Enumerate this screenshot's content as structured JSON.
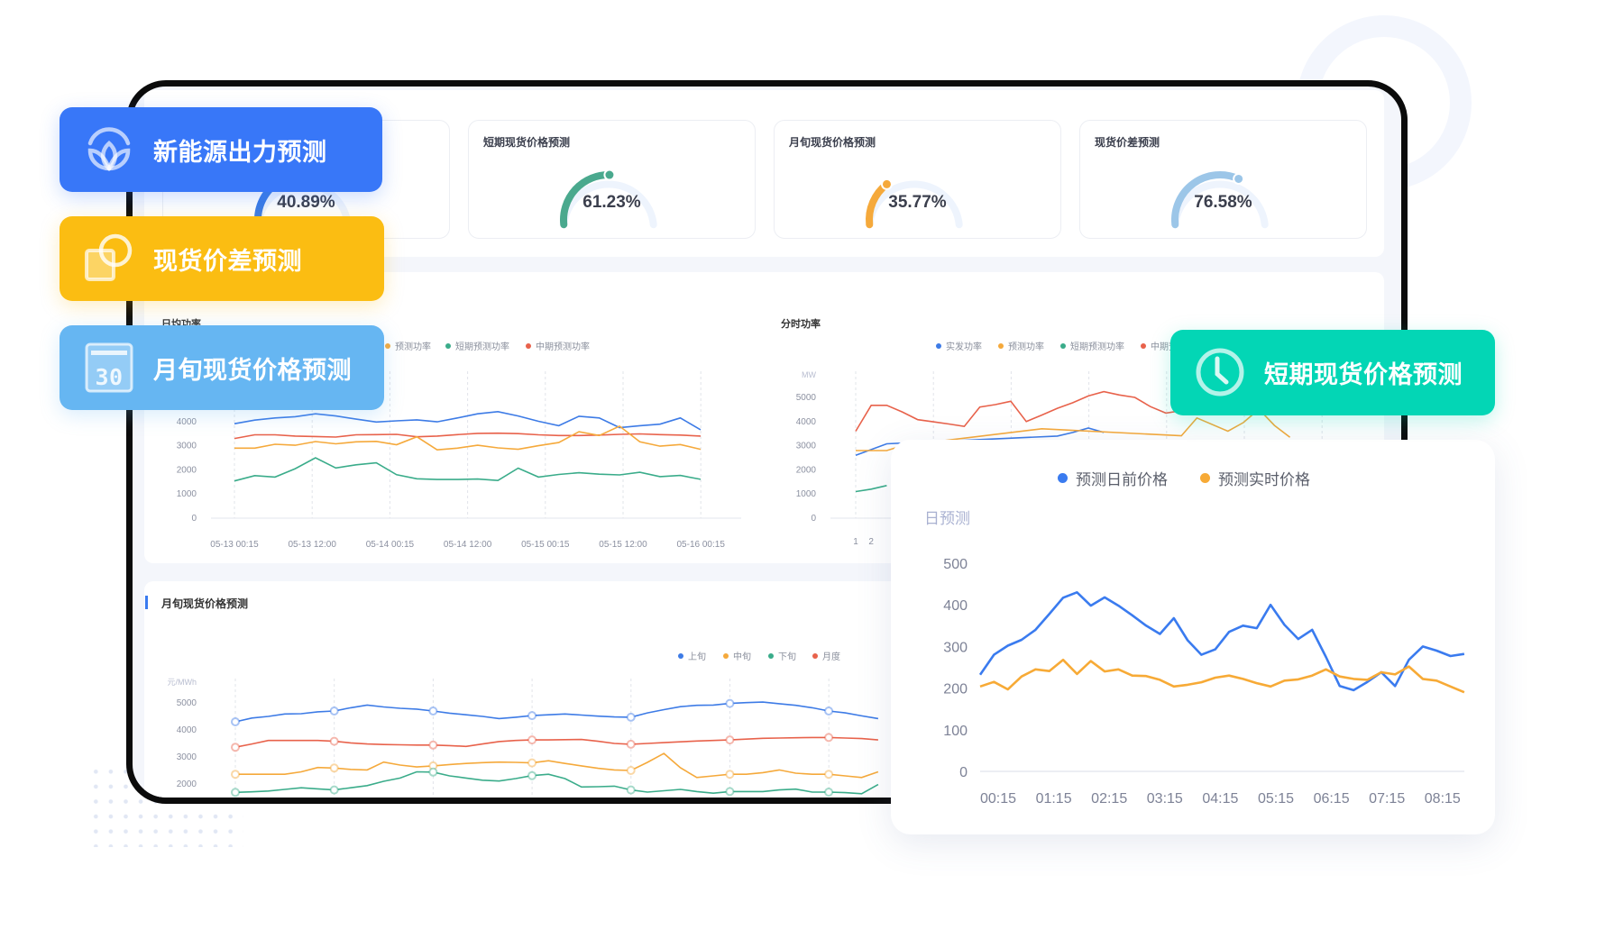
{
  "nav_buttons": [
    {
      "label": "新能源出力预测",
      "icon": "sprout-icon",
      "color": "#3877f8"
    },
    {
      "label": "现货价差预测",
      "icon": "overlap-squares-icon",
      "color": "#fbbd12"
    },
    {
      "label": "月旬现货价格预测",
      "icon": "calendar-icon",
      "icon_text": "30",
      "color": "#66b6f2"
    },
    {
      "label": "短期现货价格预测",
      "icon": "clock-icon",
      "color": "#03d6b5"
    }
  ],
  "gauges": [
    {
      "title": "",
      "value": "40.89%",
      "percent": 40.89,
      "color": "#3a7be6"
    },
    {
      "title": "短期现货价格预测",
      "value": "61.23%",
      "percent": 61.23,
      "color": "#4aa98e"
    },
    {
      "title": "月旬现货价格预测",
      "value": "35.77%",
      "percent": 35.77,
      "color": "#f5a93b"
    },
    {
      "title": "现货价差预测",
      "value": "76.58%",
      "percent": 76.58,
      "color": "#9cc6e8"
    }
  ],
  "chart_data": [
    {
      "type": "line",
      "title": "日均功率",
      "legend": [
        {
          "name": "预测功率",
          "color": "#f5a93b"
        },
        {
          "name": "短期预测功率",
          "color": "#3aac8a"
        },
        {
          "name": "中期预测功率",
          "color": "#e8624b"
        }
      ],
      "x_ticks": [
        "05-13 00:15",
        "05-13 12:00",
        "05-14 00:15",
        "05-14 12:00",
        "05-15 00:15",
        "05-15  12:00",
        "05-16 00:15"
      ],
      "y_ticks": [
        "0",
        "1000",
        "2000",
        "3000",
        "4000"
      ],
      "ylim": [
        0,
        5000
      ],
      "grid": "vertical-dashed",
      "series": [
        {
          "color": "#3d7be6",
          "values": [
            3910,
            4060,
            4150,
            4200,
            4320,
            4230,
            4100,
            3980,
            4030,
            4070,
            3990,
            4150,
            4320,
            4410,
            4230,
            4010,
            3830,
            4220,
            4150,
            3750,
            3830,
            3890,
            4150,
            3660
          ]
        },
        {
          "name": "中期预测功率",
          "color": "#e8624b",
          "values": [
            3300,
            3450,
            3450,
            3400,
            3380,
            3360,
            3450,
            3460,
            3470,
            3370,
            3400,
            3460,
            3510,
            3520,
            3500,
            3450,
            3420,
            3420,
            3440,
            3470,
            3490,
            3460,
            3440,
            3400
          ]
        },
        {
          "name": "预测功率",
          "color": "#f5a93b",
          "values": [
            2900,
            2900,
            3060,
            3020,
            3170,
            3080,
            3160,
            3180,
            3040,
            3370,
            2830,
            2900,
            3020,
            2910,
            2850,
            3000,
            3130,
            3580,
            3420,
            3810,
            3160,
            2980,
            3050,
            2850
          ]
        },
        {
          "name": "短期预测功率",
          "color": "#3aac8a",
          "values": [
            1540,
            1760,
            1700,
            2050,
            2500,
            2080,
            2210,
            2290,
            1800,
            1630,
            1600,
            1600,
            1620,
            1560,
            2070,
            1700,
            1810,
            1880,
            1820,
            1790,
            1900,
            1720,
            1770,
            1610
          ]
        }
      ]
    },
    {
      "type": "line",
      "title": "分时功率",
      "unit": "MW",
      "legend": [
        {
          "name": "实发功率",
          "color": "#3d7be6"
        },
        {
          "name": "预测功率",
          "color": "#f5a93b"
        },
        {
          "name": "短期预测功率",
          "color": "#3aac8a"
        },
        {
          "name": "中期预测功率",
          "color": "#e8624b"
        }
      ],
      "x_ticks": [
        "1",
        "2"
      ],
      "y_ticks": [
        "0",
        "1000",
        "2000",
        "3000",
        "4000",
        "5000"
      ],
      "ylim": [
        0,
        5000
      ],
      "grid": "vertical-dashed",
      "series": [
        {
          "name": "中期预测功率",
          "color": "#e8624b",
          "values": [
            3600,
            4670,
            4670,
            4400,
            4080,
            3990,
            3900,
            3800,
            4600,
            4700,
            4840,
            4000,
            4270,
            4550,
            4780,
            5060,
            5240,
            5100,
            5000,
            4620,
            4350,
            4450,
            null,
            null,
            null,
            null,
            null,
            null,
            null,
            null,
            4370
          ]
        },
        {
          "name": "实发功率",
          "color": "#3d7be6",
          "values": [
            2600,
            2840,
            3080,
            null,
            null,
            null,
            null,
            null,
            null,
            null,
            null,
            null,
            null,
            3400,
            3550,
            3730,
            3550
          ]
        },
        {
          "name": "预测功率",
          "color": "#f5a93b",
          "values": [
            2800,
            2800,
            2800,
            3000,
            null,
            null,
            null,
            null,
            null,
            null,
            null,
            null,
            3700,
            null,
            null,
            null,
            null,
            null,
            null,
            null,
            null,
            3410,
            4150,
            null,
            3600,
            3960,
            4510,
            3840,
            3350
          ]
        },
        {
          "name": "短期预测功率",
          "color": "#3aac8a",
          "values": [
            1100,
            1200,
            1350
          ]
        }
      ]
    },
    {
      "type": "line",
      "title": "月旬现货价格预测",
      "unit": "元/MWh",
      "legend": [
        {
          "name": "上旬",
          "color": "#3d7be6"
        },
        {
          "name": "中旬",
          "color": "#f5a93b"
        },
        {
          "name": "下旬",
          "color": "#3aac8a"
        },
        {
          "name": "月度",
          "color": "#e8624b"
        }
      ],
      "y_ticks": [
        "2000",
        "3000",
        "4000",
        "5000"
      ],
      "ylim": [
        0,
        5000
      ],
      "grid": "vertical-dashed",
      "series": [
        {
          "name": "上旬",
          "color": "#3d7be6",
          "values": [
            4300,
            4440,
            4500,
            4590,
            4600,
            4670,
            4700,
            4820,
            4920,
            4850,
            4800,
            4770,
            4700,
            4620,
            4560,
            4500,
            4420,
            4470,
            4530,
            4560,
            4590,
            4550,
            4510,
            4480,
            4470,
            4630,
            4750,
            4860,
            4910,
            4920,
            4980,
            5010,
            5030,
            4970,
            4910,
            4820,
            4700,
            4630,
            4520,
            4420
          ]
        },
        {
          "name": "月度",
          "color": "#e8624b",
          "values": [
            3360,
            3480,
            3610,
            3610,
            3610,
            3610,
            3580,
            3520,
            3480,
            3460,
            3450,
            3440,
            3440,
            3420,
            3390,
            3480,
            3570,
            3610,
            3630,
            3630,
            3640,
            3645,
            3580,
            3500,
            3470,
            3500,
            3530,
            3560,
            3590,
            3610,
            3630,
            3660,
            3690,
            3700,
            3710,
            3720,
            3720,
            3700,
            3680,
            3630
          ]
        },
        {
          "name": "中旬",
          "color": "#f5a93b",
          "values": [
            2360,
            2360,
            2360,
            2360,
            2450,
            2610,
            2590,
            2540,
            2520,
            2810,
            2700,
            2630,
            2670,
            2720,
            2760,
            2790,
            2810,
            2800,
            2780,
            2860,
            2760,
            2670,
            2580,
            2520,
            2500,
            2800,
            3130,
            2600,
            2240,
            2300,
            2360,
            2360,
            2420,
            2520,
            2400,
            2360,
            2360,
            2300,
            2240,
            2450
          ]
        },
        {
          "name": "下旬",
          "color": "#3aac8a",
          "values": [
            1690,
            1710,
            1740,
            1800,
            1860,
            1820,
            1780,
            1860,
            1940,
            2100,
            2220,
            2450,
            2440,
            2300,
            2220,
            2140,
            2110,
            2200,
            2310,
            2360,
            2200,
            1890,
            1900,
            1920,
            1780,
            1700,
            1750,
            1800,
            1720,
            1660,
            1720,
            1720,
            1720,
            1780,
            1810,
            1700,
            1700,
            1680,
            1640,
            1980
          ]
        }
      ]
    },
    {
      "type": "line",
      "ylabel": "日预测",
      "legend": [
        {
          "name": "预测日前价格",
          "color": "#3a7bef"
        },
        {
          "name": "预测实时价格",
          "color": "#f7aa36"
        }
      ],
      "x_ticks": [
        "00:15",
        "01:15",
        "02:15",
        "03:15",
        "04:15",
        "05:15",
        "06:15",
        "07:15",
        "08:15"
      ],
      "y_ticks": [
        "0",
        "100",
        "200",
        "300",
        "400",
        "500"
      ],
      "ylim": [
        0,
        500
      ],
      "grid": "none",
      "series": [
        {
          "name": "预测日前价格",
          "color": "#3a7bef",
          "values": [
            232,
            280,
            302,
            316,
            340,
            378,
            417,
            430,
            398,
            418,
            398,
            375,
            350,
            330,
            368,
            315,
            280,
            293,
            335,
            350,
            344,
            400,
            352,
            318,
            340,
            275,
            205,
            195,
            215,
            238,
            205,
            268,
            300,
            290,
            277,
            282
          ]
        },
        {
          "name": "预测实时价格",
          "color": "#f7aa36",
          "values": [
            204,
            215,
            197,
            228,
            245,
            241,
            268,
            234,
            265,
            240,
            245,
            230,
            229,
            220,
            204,
            208,
            214,
            225,
            230,
            222,
            212,
            204,
            218,
            221,
            230,
            245,
            228,
            222,
            220,
            238,
            233,
            252,
            222,
            218,
            204,
            190
          ]
        }
      ]
    }
  ]
}
